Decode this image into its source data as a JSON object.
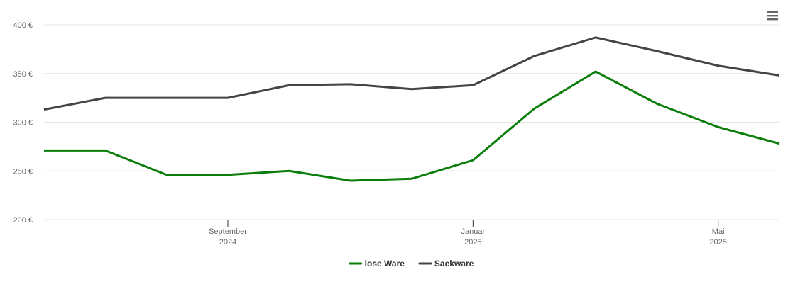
{
  "chart_data": {
    "type": "line",
    "x": [
      "2024-06",
      "2024-07",
      "2024-08",
      "2024-09",
      "2024-10",
      "2024-11",
      "2024-12",
      "2025-01",
      "2025-02",
      "2025-03",
      "2025-04",
      "2025-05",
      "2025-06"
    ],
    "series": [
      {
        "name": "lose Ware",
        "color": "#0b7d0b",
        "values": [
          271,
          271,
          246,
          246,
          250,
          240,
          242,
          261,
          314,
          352,
          319,
          295,
          278
        ]
      },
      {
        "name": "Sackware",
        "color": "#434348",
        "values": [
          313,
          325,
          325,
          325,
          338,
          339,
          334,
          338,
          368,
          387,
          373,
          358,
          348
        ]
      }
    ],
    "ylim": [
      200,
      400
    ],
    "yticks": [
      {
        "value": 200,
        "label": "200 €"
      },
      {
        "value": 250,
        "label": "250 €"
      },
      {
        "value": 300,
        "label": "300 €"
      },
      {
        "value": 350,
        "label": "350 €"
      },
      {
        "value": 400,
        "label": "400 €"
      }
    ],
    "xticks": [
      {
        "value": "2024-09",
        "label": [
          "September",
          "2024"
        ]
      },
      {
        "value": "2025-01",
        "label": [
          "Januar",
          "2025"
        ]
      },
      {
        "value": "2025-05",
        "label": [
          "Mai",
          "2025"
        ]
      }
    ],
    "grid": true,
    "legend": "bottom"
  }
}
